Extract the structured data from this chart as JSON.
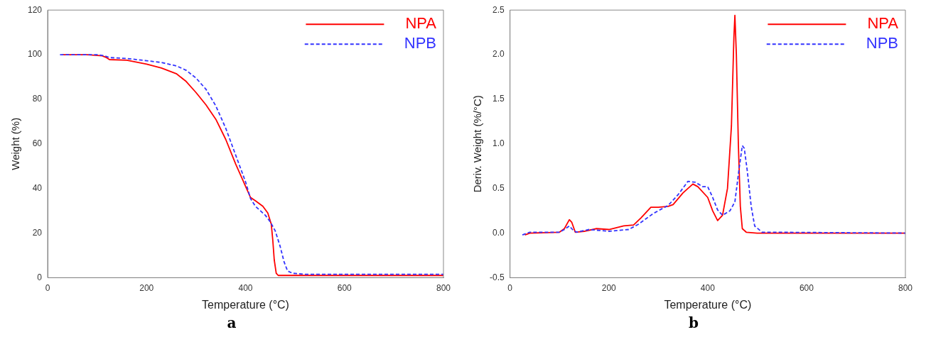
{
  "chart_data": [
    {
      "type": "line",
      "xlabel": "Temperature (°C)",
      "ylabel": "Weight (%)",
      "xlim": [
        0,
        800
      ],
      "xticks": [
        0,
        200,
        400,
        600,
        800
      ],
      "ylim": [
        0,
        120
      ],
      "yticks": [
        0,
        20,
        40,
        60,
        80,
        100,
        120
      ],
      "grid": false,
      "legend": "top right",
      "marker": "none",
      "annotations": [
        "a"
      ],
      "series": [
        {
          "name": "NPA",
          "color": "#ff0000",
          "line_style": "solid",
          "x": [
            30,
            80,
            110,
            118,
            125,
            160,
            200,
            230,
            260,
            280,
            300,
            320,
            340,
            360,
            380,
            400,
            410,
            420,
            435,
            445,
            452,
            455,
            458,
            462,
            466,
            500,
            600,
            800
          ],
          "values": [
            100,
            100,
            99.5,
            98.8,
            97.8,
            97.5,
            95.8,
            94,
            91.5,
            88,
            83,
            77.5,
            71,
            62,
            51,
            41,
            36,
            34.5,
            32,
            29,
            24,
            17,
            8,
            2,
            1,
            1,
            1,
            1
          ]
        },
        {
          "name": "NPB",
          "color": "#3333ff",
          "line_style": "dashed",
          "x": [
            25,
            100,
            115,
            125,
            160,
            200,
            230,
            260,
            280,
            300,
            320,
            340,
            360,
            380,
            400,
            410,
            420,
            440,
            450,
            460,
            470,
            478,
            485,
            495,
            520,
            800
          ],
          "values": [
            100,
            100,
            99.5,
            98.7,
            98.3,
            97.3,
            96.5,
            95,
            93,
            89.5,
            84.5,
            77,
            67,
            55,
            43,
            35.5,
            32,
            28,
            25,
            21,
            14,
            7,
            3,
            2,
            1.5,
            1.5
          ]
        }
      ]
    },
    {
      "type": "line",
      "xlabel": "Temperature (°C)",
      "ylabel": "Deriv. Weight (%/°C)",
      "xlim": [
        0,
        800
      ],
      "xticks": [
        0,
        200,
        400,
        600,
        800
      ],
      "ylim": [
        -0.5,
        2.5
      ],
      "yticks": [
        {
          "value": -0.5,
          "label": "-0.5"
        },
        {
          "value": 0,
          "label": "0.0"
        },
        {
          "value": 0.5,
          "label": "0.5"
        },
        {
          "value": 1,
          "label": "1.0"
        },
        {
          "value": 1.5,
          "label": "1.5"
        },
        {
          "value": 2,
          "label": "2.0"
        },
        {
          "value": 2.5,
          "label": "2.5"
        }
      ],
      "grid": false,
      "legend": "top right",
      "marker": "none",
      "annotations": [
        "b"
      ],
      "series": [
        {
          "name": "NPA",
          "color": "#ff0000",
          "line_style": "solid",
          "x": [
            30,
            40,
            100,
            110,
            120,
            125,
            132,
            150,
            175,
            200,
            230,
            250,
            265,
            285,
            300,
            320,
            330,
            350,
            370,
            380,
            400,
            410,
            420,
            430,
            440,
            448,
            453,
            455,
            458,
            462,
            466,
            470,
            478,
            500,
            800
          ],
          "values": [
            -0.02,
            0,
            0.01,
            0.05,
            0.15,
            0.12,
            0.01,
            0.02,
            0.05,
            0.04,
            0.08,
            0.09,
            0.17,
            0.29,
            0.29,
            0.3,
            0.32,
            0.45,
            0.55,
            0.52,
            0.4,
            0.25,
            0.14,
            0.2,
            0.5,
            1.2,
            2.2,
            2.44,
            2.0,
            1.0,
            0.3,
            0.05,
            0.01,
            0,
            0
          ]
        },
        {
          "name": "NPB",
          "color": "#3333ff",
          "line_style": "dashed",
          "x": [
            25,
            40,
            100,
            110,
            120,
            128,
            135,
            160,
            200,
            240,
            260,
            290,
            320,
            340,
            360,
            375,
            390,
            400,
            410,
            420,
            430,
            445,
            455,
            463,
            470,
            474,
            480,
            488,
            495,
            510,
            800
          ],
          "values": [
            -0.02,
            0.01,
            0.01,
            0.04,
            0.08,
            0.03,
            0.01,
            0.04,
            0.02,
            0.04,
            0.1,
            0.22,
            0.31,
            0.43,
            0.58,
            0.57,
            0.52,
            0.52,
            0.4,
            0.26,
            0.2,
            0.25,
            0.35,
            0.7,
            0.98,
            0.95,
            0.7,
            0.3,
            0.08,
            0.01,
            0
          ]
        }
      ]
    }
  ]
}
